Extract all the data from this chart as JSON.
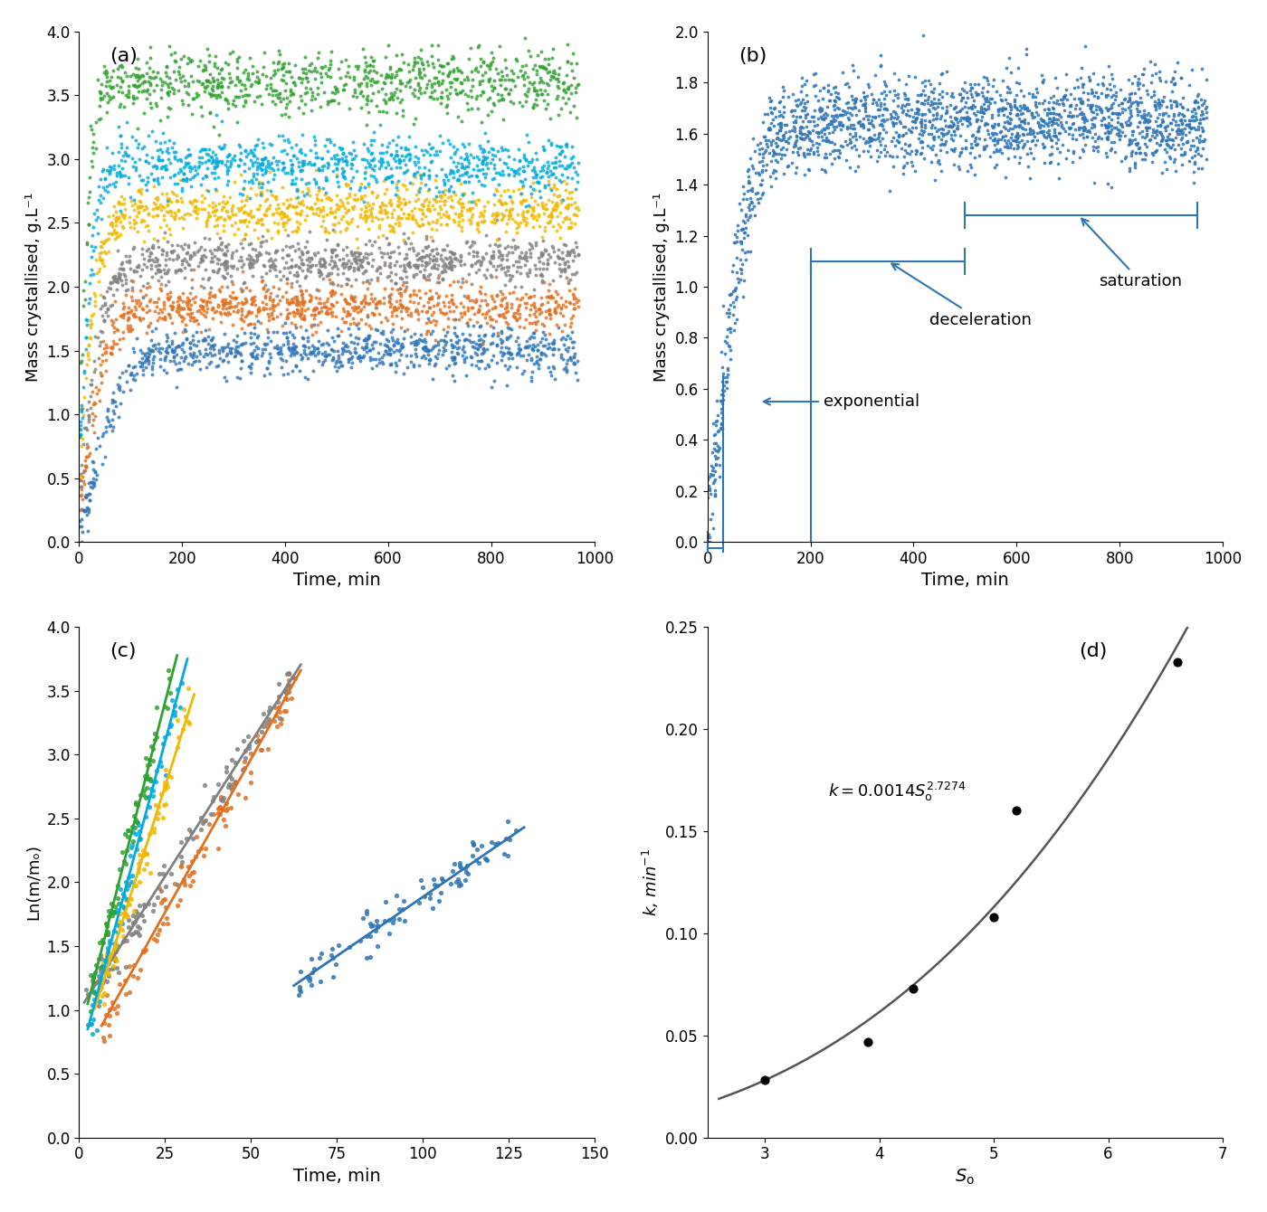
{
  "fig_width": 14.0,
  "fig_height": 13.4,
  "dpi": 100,
  "panel_a": {
    "label": "(a)",
    "xlabel": "Time, min",
    "ylabel": "Mass crystallised, g.L⁻¹",
    "xlim": [
      0,
      1000
    ],
    "ylim": [
      0,
      4
    ],
    "yticks": [
      0,
      0.5,
      1.0,
      1.5,
      2.0,
      2.5,
      3.0,
      3.5,
      4.0
    ],
    "xticks": [
      0,
      200,
      400,
      600,
      800,
      1000
    ],
    "series": [
      {
        "color": "#2e75b6",
        "plateau": 1.5,
        "k": 0.03,
        "lag": 30,
        "n_points": 900,
        "noise": 0.09,
        "seed": 1
      },
      {
        "color": "#e07020",
        "plateau": 1.85,
        "k": 0.04,
        "lag": 15,
        "n_points": 900,
        "noise": 0.09,
        "seed": 2
      },
      {
        "color": "#808080",
        "plateau": 2.2,
        "k": 0.045,
        "lag": 12,
        "n_points": 900,
        "noise": 0.09,
        "seed": 3
      },
      {
        "color": "#f0b800",
        "plateau": 2.6,
        "k": 0.055,
        "lag": 8,
        "n_points": 900,
        "noise": 0.1,
        "seed": 4
      },
      {
        "color": "#00aadd",
        "plateau": 2.95,
        "k": 0.07,
        "lag": 6,
        "n_points": 900,
        "noise": 0.11,
        "seed": 5
      },
      {
        "color": "#30a030",
        "plateau": 3.6,
        "k": 0.085,
        "lag": 4,
        "n_points": 900,
        "noise": 0.13,
        "seed": 6
      }
    ]
  },
  "panel_b": {
    "label": "(b)",
    "xlabel": "Time, min",
    "ylabel": "Mass crystallised, g.L⁻¹",
    "xlim": [
      0,
      1000
    ],
    "ylim": [
      0,
      2
    ],
    "yticks": [
      0,
      0.2,
      0.4,
      0.6,
      0.8,
      1.0,
      1.2,
      1.4,
      1.6,
      1.8,
      2.0
    ],
    "xticks": [
      0,
      200,
      400,
      600,
      800,
      1000
    ],
    "plateau": 1.65,
    "k": 0.03,
    "lag": 30,
    "n_points": 2000,
    "noise": 0.09,
    "seed": 1,
    "color": "#2e75b6",
    "lag_region": [
      0,
      35
    ],
    "exp_region": [
      35,
      220
    ],
    "dec_region": [
      220,
      500
    ],
    "sat_region": [
      500,
      970
    ]
  },
  "panel_c": {
    "label": "(c)",
    "xlabel": "Time, min",
    "ylabel": "Ln(m/mₒ)",
    "xlim": [
      0,
      150
    ],
    "ylim": [
      0,
      4
    ],
    "yticks": [
      0,
      0.5,
      1.0,
      1.5,
      2.0,
      2.5,
      3.0,
      3.5,
      4.0
    ],
    "xticks": [
      0,
      25,
      50,
      75,
      100,
      125,
      150
    ],
    "series": [
      {
        "color": "#2e75b6",
        "k": 0.0185,
        "t_start": 63,
        "t_end": 128,
        "y0": 1.2,
        "noise": 0.09,
        "seed": 11,
        "n": 100
      },
      {
        "color": "#e07020",
        "k": 0.048,
        "t_start": 7,
        "t_end": 63,
        "y0": 0.9,
        "noise": 0.09,
        "seed": 12,
        "n": 110
      },
      {
        "color": "#808080",
        "k": 0.042,
        "t_start": 2,
        "t_end": 63,
        "y0": 1.08,
        "noise": 0.1,
        "seed": 13,
        "n": 120
      },
      {
        "color": "#f0b800",
        "k": 0.085,
        "t_start": 5,
        "t_end": 32,
        "y0": 1.05,
        "noise": 0.09,
        "seed": 14,
        "n": 80
      },
      {
        "color": "#00aadd",
        "k": 0.1,
        "t_start": 3,
        "t_end": 30,
        "y0": 0.9,
        "noise": 0.1,
        "seed": 15,
        "n": 80
      },
      {
        "color": "#30a030",
        "k": 0.105,
        "t_start": 3,
        "t_end": 27,
        "y0": 1.1,
        "noise": 0.09,
        "seed": 16,
        "n": 75
      }
    ]
  },
  "panel_d": {
    "label": "(d)",
    "xlabel": "Sₒ",
    "ylabel": "k, min⁻¹",
    "xlim": [
      2.5,
      7
    ],
    "ylim": [
      0,
      0.25
    ],
    "yticks": [
      0,
      0.05,
      0.1,
      0.15,
      0.2,
      0.25
    ],
    "xticks": [
      3,
      4,
      5,
      6,
      7
    ],
    "data_x": [
      3.0,
      3.9,
      4.3,
      5.0,
      5.2,
      6.6
    ],
    "data_y": [
      0.028,
      0.047,
      0.073,
      0.108,
      0.16,
      0.233
    ],
    "fit_A": 0.0014,
    "fit_n": 2.7274
  }
}
